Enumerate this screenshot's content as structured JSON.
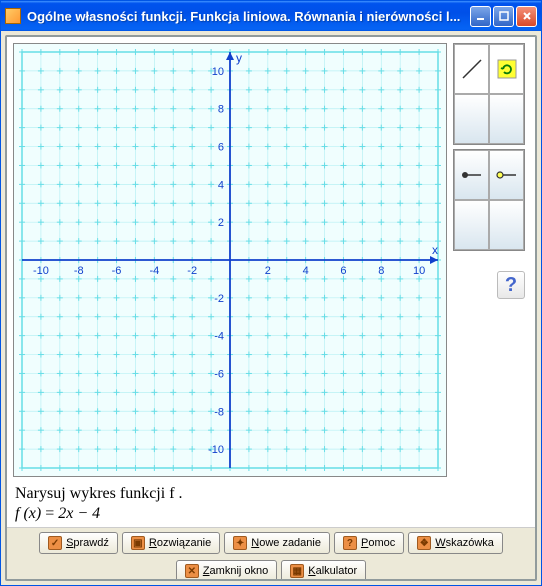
{
  "window": {
    "title": "Ogólne własności funkcji. Funkcja liniowa. Równania i nierówności l..."
  },
  "graph": {
    "xlim": [
      -11,
      11
    ],
    "ylim": [
      -11,
      11
    ],
    "xtick_step": 2,
    "ytick_step": 2,
    "xticks": [
      -10,
      -8,
      -6,
      -4,
      -2,
      2,
      4,
      6,
      8,
      10
    ],
    "yticks": [
      -10,
      -8,
      -6,
      -4,
      -2,
      2,
      4,
      6,
      8,
      10
    ],
    "x_label": "x",
    "y_label": "y",
    "background_color": "#f0fefe",
    "axis_color": "#1040cc",
    "grid_major_color": "#66dde6",
    "grid_minor_color": "#b8f0f4",
    "tick_label_color": "#1040cc",
    "tick_fontsize": 11,
    "grid_step": 1,
    "border_color": "#66dde6"
  },
  "task": {
    "instruction": "Narysuj wykres funkcji  f .",
    "formula_lhs": "f (x)",
    "formula_eq": "=",
    "formula_rhs": "2x − 4"
  },
  "buttons": {
    "check": "Sprawdź",
    "solution": "Rozwiązanie",
    "new_task": "Nowe zadanie",
    "help": "Pomoc",
    "hint": "Wskazówka",
    "close_window": "Zamknij okno",
    "calculator": "Kalkulator"
  },
  "icons": {
    "check": "✓",
    "solution": "▣",
    "new_task": "✦",
    "help": "?",
    "hint": "❖",
    "close_window": "✕",
    "calculator": "▦",
    "big_help": "?"
  }
}
